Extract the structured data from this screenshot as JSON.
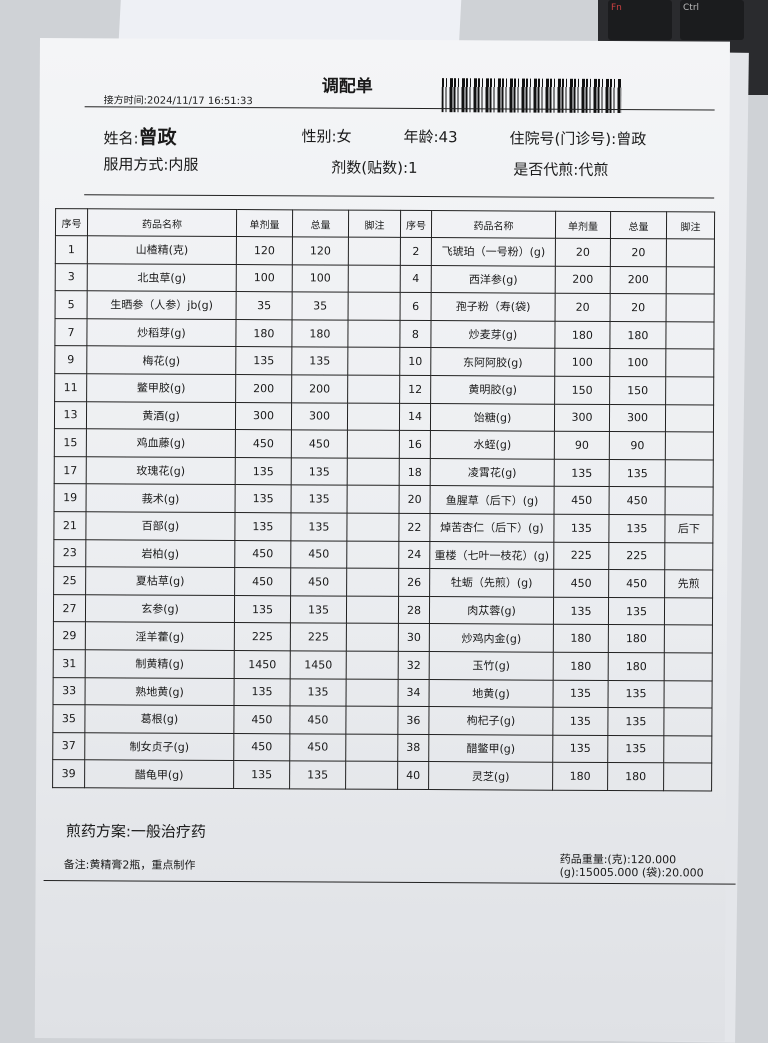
{
  "document": {
    "title": "调配单",
    "print_time": "接方时间:2024/11/17 16:51:33",
    "patient": {
      "name_label": "姓名:",
      "name": "曾政",
      "gender": "性别:女",
      "age": "年龄:43",
      "hospital_no": "住院号(门诊号):曾政",
      "usage": "服用方式:内服",
      "doses": "剂数(贴数):1",
      "decoct": "是否代煎:代煎"
    },
    "table": {
      "headers": [
        "序号",
        "药品名称",
        "单剂量",
        "总量",
        "脚注",
        "序号",
        "药品名称",
        "单剂量",
        "总量",
        "脚注"
      ],
      "rows": [
        [
          "1",
          "山楂精(克)",
          "120",
          "120",
          "",
          "2",
          "飞琥珀（一号粉）(g)",
          "20",
          "20",
          ""
        ],
        [
          "3",
          "北虫草(g)",
          "100",
          "100",
          "",
          "4",
          "西洋参(g)",
          "200",
          "200",
          ""
        ],
        [
          "5",
          "生晒参（人参）jb(g)",
          "35",
          "35",
          "",
          "6",
          "孢子粉（寿(袋)",
          "20",
          "20",
          ""
        ],
        [
          "7",
          "炒稻芽(g)",
          "180",
          "180",
          "",
          "8",
          "炒麦芽(g)",
          "180",
          "180",
          ""
        ],
        [
          "9",
          "梅花(g)",
          "135",
          "135",
          "",
          "10",
          "东阿阿胶(g)",
          "100",
          "100",
          ""
        ],
        [
          "11",
          "鳖甲胶(g)",
          "200",
          "200",
          "",
          "12",
          "黄明胶(g)",
          "150",
          "150",
          ""
        ],
        [
          "13",
          "黄酒(g)",
          "300",
          "300",
          "",
          "14",
          "饴糖(g)",
          "300",
          "300",
          ""
        ],
        [
          "15",
          "鸡血藤(g)",
          "450",
          "450",
          "",
          "16",
          "水蛭(g)",
          "90",
          "90",
          ""
        ],
        [
          "17",
          "玫瑰花(g)",
          "135",
          "135",
          "",
          "18",
          "凌霄花(g)",
          "135",
          "135",
          ""
        ],
        [
          "19",
          "莪术(g)",
          "135",
          "135",
          "",
          "20",
          "鱼腥草（后下）(g)",
          "450",
          "450",
          ""
        ],
        [
          "21",
          "百部(g)",
          "135",
          "135",
          "",
          "22",
          "焯苦杏仁（后下）(g)",
          "135",
          "135",
          "后下"
        ],
        [
          "23",
          "岩柏(g)",
          "450",
          "450",
          "",
          "24",
          "重楼（七叶一枝花）(g)",
          "225",
          "225",
          ""
        ],
        [
          "25",
          "夏枯草(g)",
          "450",
          "450",
          "",
          "26",
          "牡蛎（先煎）(g)",
          "450",
          "450",
          "先煎"
        ],
        [
          "27",
          "玄参(g)",
          "135",
          "135",
          "",
          "28",
          "肉苁蓉(g)",
          "135",
          "135",
          ""
        ],
        [
          "29",
          "淫羊藿(g)",
          "225",
          "225",
          "",
          "30",
          "炒鸡内金(g)",
          "180",
          "180",
          ""
        ],
        [
          "31",
          "制黄精(g)",
          "1450",
          "1450",
          "",
          "32",
          "玉竹(g)",
          "180",
          "180",
          ""
        ],
        [
          "33",
          "熟地黄(g)",
          "135",
          "135",
          "",
          "34",
          "地黄(g)",
          "135",
          "135",
          ""
        ],
        [
          "35",
          "葛根(g)",
          "450",
          "450",
          "",
          "36",
          "枸杞子(g)",
          "135",
          "135",
          ""
        ],
        [
          "37",
          "制女贞子(g)",
          "450",
          "450",
          "",
          "38",
          "醋鳖甲(g)",
          "135",
          "135",
          ""
        ],
        [
          "39",
          "醋龟甲(g)",
          "135",
          "135",
          "",
          "40",
          "灵芝(g)",
          "180",
          "180",
          ""
        ]
      ]
    },
    "scheme": "煎药方案:一般治疗药",
    "remark": "备注:黄精膏2瓶，重点制作",
    "total_weight": "药品重量:(克):120.000 (g):15005.000 (袋):20.000"
  },
  "keyboard": {
    "keys": [
      "Fn",
      "Ctrl"
    ]
  }
}
